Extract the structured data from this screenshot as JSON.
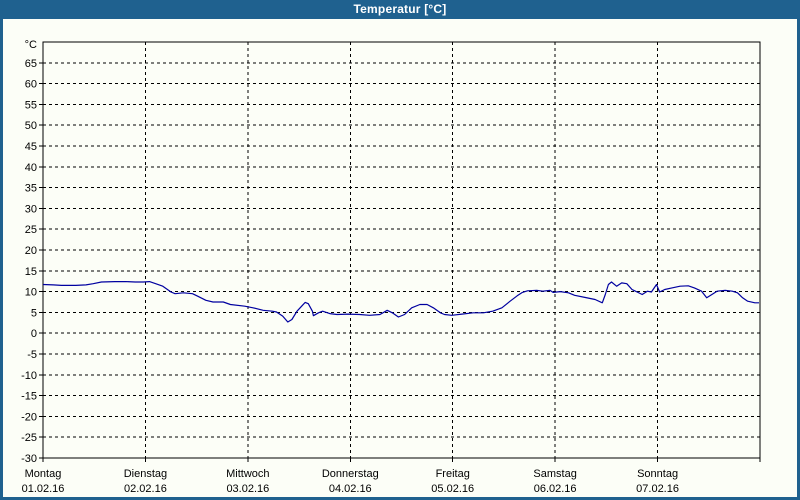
{
  "window": {
    "title": "Temperatur [°C]",
    "titlebar_color": "#1F618F",
    "border_color": "#1F618F",
    "background_color": "#FCFEF7"
  },
  "chart_data": {
    "type": "line",
    "title": "Temperatur [°C]",
    "legend": "none",
    "grid": {
      "style": "dashed",
      "color": "#000000"
    },
    "y_axis": {
      "unit_label": "°C",
      "min": -30,
      "max": 70,
      "tick_step": 5,
      "tick_values": [
        65,
        60,
        55,
        50,
        45,
        40,
        35,
        30,
        25,
        20,
        15,
        10,
        5,
        0,
        -5,
        -10,
        -15,
        -20,
        -25,
        -30
      ]
    },
    "x_axis": {
      "days": 7,
      "ticks": [
        {
          "pos": 0,
          "day_label": "Montag",
          "date_label": "01.02.16"
        },
        {
          "pos": 1,
          "day_label": "Dienstag",
          "date_label": "02.02.16"
        },
        {
          "pos": 2,
          "day_label": "Mittwoch",
          "date_label": "03.02.16"
        },
        {
          "pos": 3,
          "day_label": "Donnerstag",
          "date_label": "04.02.16"
        },
        {
          "pos": 4,
          "day_label": "Freitag",
          "date_label": "05.02.16"
        },
        {
          "pos": 5,
          "day_label": "Samstag",
          "date_label": "06.02.16"
        },
        {
          "pos": 6,
          "day_label": "Sonntag",
          "date_label": "07.02.16"
        }
      ]
    },
    "series": [
      {
        "name": "Temperatur",
        "color": "#0000A0",
        "points": [
          [
            0.0,
            11.7
          ],
          [
            0.1,
            11.6
          ],
          [
            0.18,
            11.5
          ],
          [
            0.32,
            11.5
          ],
          [
            0.42,
            11.6
          ],
          [
            0.49,
            11.9
          ],
          [
            0.57,
            12.3
          ],
          [
            0.7,
            12.4
          ],
          [
            0.81,
            12.4
          ],
          [
            0.9,
            12.3
          ],
          [
            0.98,
            12.3
          ],
          [
            1.04,
            12.4
          ],
          [
            1.1,
            11.9
          ],
          [
            1.17,
            11.3
          ],
          [
            1.25,
            9.9
          ],
          [
            1.29,
            9.5
          ],
          [
            1.37,
            9.7
          ],
          [
            1.46,
            9.5
          ],
          [
            1.51,
            8.9
          ],
          [
            1.59,
            7.9
          ],
          [
            1.66,
            7.5
          ],
          [
            1.76,
            7.5
          ],
          [
            1.83,
            6.9
          ],
          [
            1.97,
            6.5
          ],
          [
            2.05,
            6.1
          ],
          [
            2.15,
            5.5
          ],
          [
            2.24,
            5.3
          ],
          [
            2.28,
            5.1
          ],
          [
            2.34,
            4.1
          ],
          [
            2.39,
            2.7
          ],
          [
            2.43,
            3.3
          ],
          [
            2.48,
            5.3
          ],
          [
            2.53,
            6.6
          ],
          [
            2.56,
            7.4
          ],
          [
            2.59,
            7.1
          ],
          [
            2.63,
            5.3
          ],
          [
            2.64,
            4.2
          ],
          [
            2.69,
            4.9
          ],
          [
            2.73,
            5.3
          ],
          [
            2.8,
            4.7
          ],
          [
            2.87,
            4.5
          ],
          [
            2.98,
            4.6
          ],
          [
            3.09,
            4.5
          ],
          [
            3.19,
            4.3
          ],
          [
            3.29,
            4.5
          ],
          [
            3.36,
            5.5
          ],
          [
            3.41,
            4.9
          ],
          [
            3.47,
            3.9
          ],
          [
            3.53,
            4.5
          ],
          [
            3.6,
            6.1
          ],
          [
            3.68,
            6.9
          ],
          [
            3.75,
            6.9
          ],
          [
            3.81,
            6.1
          ],
          [
            3.88,
            4.9
          ],
          [
            3.92,
            4.5
          ],
          [
            3.99,
            4.3
          ],
          [
            4.09,
            4.6
          ],
          [
            4.2,
            4.9
          ],
          [
            4.3,
            4.9
          ],
          [
            4.39,
            5.3
          ],
          [
            4.48,
            6.1
          ],
          [
            4.56,
            7.7
          ],
          [
            4.63,
            9.0
          ],
          [
            4.68,
            9.8
          ],
          [
            4.73,
            10.2
          ],
          [
            4.82,
            10.3
          ],
          [
            4.88,
            10.1
          ],
          [
            4.95,
            10.3
          ],
          [
            4.98,
            9.8
          ],
          [
            5.05,
            10.0
          ],
          [
            5.13,
            9.7
          ],
          [
            5.19,
            9.1
          ],
          [
            5.29,
            8.6
          ],
          [
            5.39,
            8.1
          ],
          [
            5.46,
            7.3
          ],
          [
            5.49,
            9.3
          ],
          [
            5.52,
            11.7
          ],
          [
            5.55,
            12.3
          ],
          [
            5.6,
            11.3
          ],
          [
            5.65,
            12.1
          ],
          [
            5.7,
            11.9
          ],
          [
            5.75,
            10.5
          ],
          [
            5.8,
            9.9
          ],
          [
            5.85,
            9.3
          ],
          [
            5.9,
            10.1
          ],
          [
            5.94,
            9.9
          ],
          [
            5.99,
            11.7
          ],
          [
            6.02,
            9.9
          ],
          [
            6.07,
            10.5
          ],
          [
            6.14,
            10.9
          ],
          [
            6.22,
            11.3
          ],
          [
            6.3,
            11.4
          ],
          [
            6.36,
            10.9
          ],
          [
            6.43,
            10.1
          ],
          [
            6.48,
            8.5
          ],
          [
            6.53,
            9.3
          ],
          [
            6.58,
            10.1
          ],
          [
            6.66,
            10.3
          ],
          [
            6.73,
            10.1
          ],
          [
            6.78,
            9.7
          ],
          [
            6.83,
            8.5
          ],
          [
            6.88,
            7.7
          ],
          [
            6.95,
            7.3
          ],
          [
            6.99,
            7.3
          ]
        ]
      }
    ]
  }
}
